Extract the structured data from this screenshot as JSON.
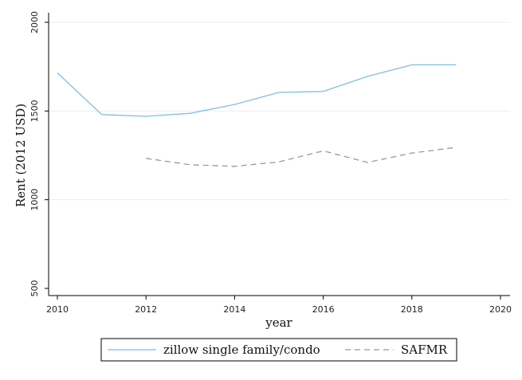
{
  "chart_data": {
    "type": "line",
    "xlabel": "year",
    "ylabel": "Rent (2012 USD)",
    "xlim": [
      2010,
      2020
    ],
    "ylim": [
      500,
      2000
    ],
    "x_ticks": [
      2010,
      2012,
      2014,
      2016,
      2018,
      2020
    ],
    "y_ticks": [
      500,
      1000,
      1500,
      2000
    ],
    "grid": "horizontal",
    "legend_position": "bottom",
    "series": [
      {
        "name": "zillow single family/condo",
        "style": "solid",
        "color": "#7fbfe6",
        "x": [
          2010,
          2011,
          2012,
          2013,
          2014,
          2015,
          2016,
          2017,
          2018,
          2019
        ],
        "y": [
          1715,
          1480,
          1470,
          1487,
          1537,
          1605,
          1610,
          1695,
          1760,
          1760
        ]
      },
      {
        "name": "SAFMR",
        "style": "dashed",
        "color": "#999999",
        "x": [
          2012,
          2013,
          2014,
          2015,
          2016,
          2017,
          2018,
          2019
        ],
        "y": [
          1233,
          1197,
          1188,
          1213,
          1275,
          1210,
          1263,
          1295
        ]
      }
    ]
  }
}
